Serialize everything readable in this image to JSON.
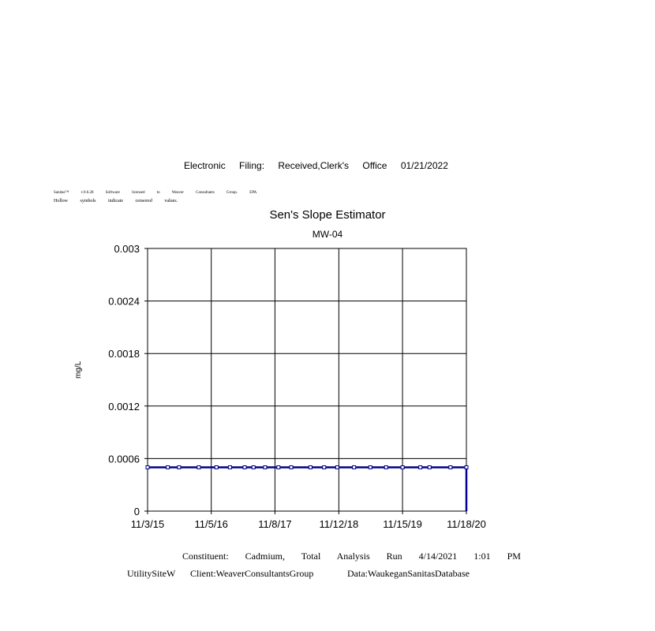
{
  "header": {
    "filing": "Electronic Filing: Received,Clerk's Office 01/21/2022"
  },
  "license": {
    "line1": "Sanitas™ v.9.6.28 Software licensed to Weaver Consultants Group. EPA",
    "line2": "Hollow symbols indicate censored values."
  },
  "footer": {
    "line1": "Constituent: Cadmium, Total Analysis Run 4/14/2021 1:01 PM",
    "site": "UtilitySiteW",
    "client": "Client:WeaverConsultantsGroup",
    "data": "Data:WaukeganSanitasDatabase"
  },
  "chart_data": {
    "type": "line",
    "title": "Sen's Slope Estimator",
    "subtitle": "MW-04",
    "ylabel": "mg/L",
    "xlabel": "",
    "ylim": [
      0,
      0.003
    ],
    "xlim": [
      "2015-11-03",
      "2020-11-18"
    ],
    "grid": true,
    "color": "#00008b",
    "yticks": [
      "0",
      "0.0006",
      "0.0012",
      "0.0018",
      "0.0024",
      "0.003"
    ],
    "xticks": [
      {
        "label": "11/3/15",
        "date": "2015-11-03"
      },
      {
        "label": "11/5/16",
        "date": "2016-11-05"
      },
      {
        "label": "11/8/17",
        "date": "2017-11-08"
      },
      {
        "label": "11/12/18",
        "date": "2018-11-12"
      },
      {
        "label": "11/15/19",
        "date": "2019-11-15"
      },
      {
        "label": "11/18/20",
        "date": "2020-11-18"
      }
    ],
    "series": [
      {
        "marker": "hollow-square",
        "points": [
          [
            "2015-11-03",
            0.0005
          ],
          [
            "2016-02-28",
            0.0005
          ],
          [
            "2016-05-03",
            0.0005
          ],
          [
            "2016-08-25",
            0.0005
          ],
          [
            "2016-12-05",
            0.0005
          ],
          [
            "2017-02-21",
            0.0005
          ],
          [
            "2017-05-17",
            0.0005
          ],
          [
            "2017-07-07",
            0.0005
          ],
          [
            "2017-09-12",
            0.0005
          ],
          [
            "2017-11-28",
            0.0005
          ],
          [
            "2018-02-10",
            0.0005
          ],
          [
            "2018-06-01",
            0.0005
          ],
          [
            "2018-08-19",
            0.0005
          ],
          [
            "2018-11-03",
            0.0005
          ],
          [
            "2019-02-08",
            0.0005
          ],
          [
            "2019-05-13",
            0.0005
          ],
          [
            "2019-08-12",
            0.0005
          ],
          [
            "2019-11-15",
            0.0005
          ],
          [
            "2020-02-26",
            0.0005
          ],
          [
            "2020-04-19",
            0.0005
          ],
          [
            "2020-08-18",
            0.0005
          ],
          [
            "2020-11-18",
            0.0005
          ]
        ]
      }
    ],
    "end_segment": {
      "date": "2020-11-18",
      "from": 0.0005,
      "to": 0
    }
  }
}
